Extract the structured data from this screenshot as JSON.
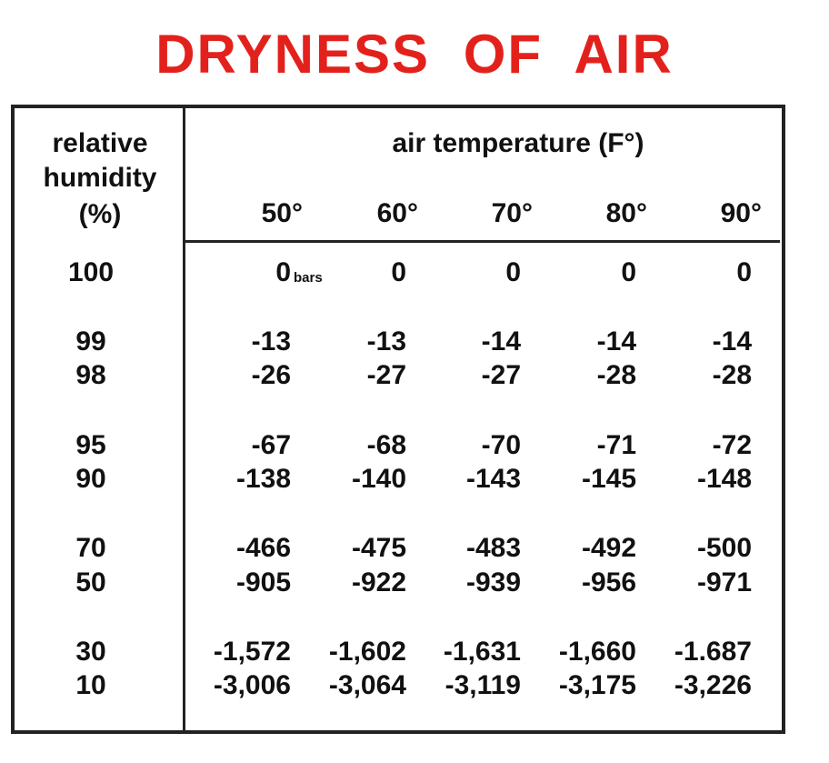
{
  "title": "DRYNESS OF AIR",
  "header": {
    "row_label": [
      "relative",
      "humidity",
      "(%)"
    ],
    "column_group": "air temperature (F°)",
    "columns": [
      "50°",
      "60°",
      "70°",
      "80°",
      "90°"
    ]
  },
  "unit": "bars",
  "rows": [
    {
      "humidity": "100",
      "values": [
        "0",
        "0",
        "0",
        "0",
        "0"
      ]
    },
    {
      "humidity": "99",
      "values": [
        "-13",
        "-13",
        "-14",
        "-14",
        "-14"
      ]
    },
    {
      "humidity": "98",
      "values": [
        "-26",
        "-27",
        "-27",
        "-28",
        "-28"
      ]
    },
    {
      "humidity": "95",
      "values": [
        "-67",
        "-68",
        "-70",
        "-71",
        "-72"
      ]
    },
    {
      "humidity": "90",
      "values": [
        "-138",
        "-140",
        "-143",
        "-145",
        "-148"
      ]
    },
    {
      "humidity": "70",
      "values": [
        "-466",
        "-475",
        "-483",
        "-492",
        "-500"
      ]
    },
    {
      "humidity": "50",
      "values": [
        "-905",
        "-922",
        "-939",
        "-956",
        "-971"
      ]
    },
    {
      "humidity": "30",
      "values": [
        "-1,572",
        "-1,602",
        "-1,631",
        "-1,660",
        "-1.687"
      ]
    },
    {
      "humidity": "10",
      "values": [
        "-3,006",
        "-3,064",
        "-3,119",
        "-3,175",
        "-3,226"
      ]
    }
  ]
}
